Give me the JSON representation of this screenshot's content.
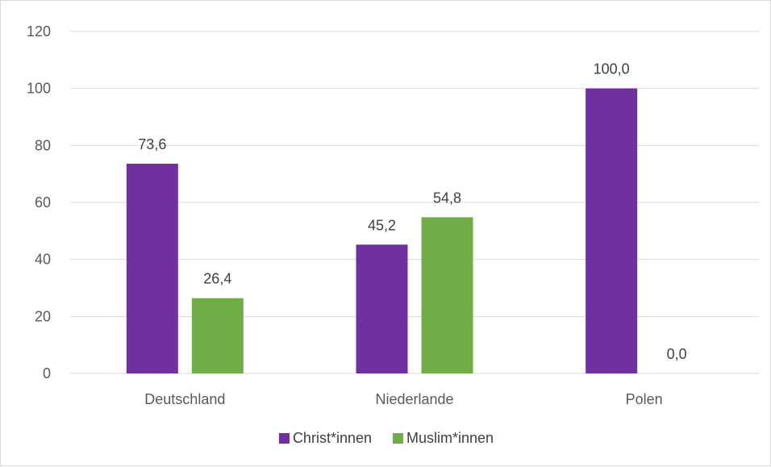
{
  "chart_data": {
    "type": "bar",
    "title": "",
    "xlabel": "",
    "ylabel": "",
    "categories": [
      "Deutschland",
      "Niederlande",
      "Polen"
    ],
    "series": [
      {
        "name": "Christ*innen",
        "color": "#7030a0",
        "values": [
          73.6,
          45.2,
          100.0
        ],
        "labels": [
          "73,6",
          "45,2",
          "100,0"
        ]
      },
      {
        "name": "Muslim*innen",
        "color": "#70ad47",
        "values": [
          26.4,
          54.8,
          0.0
        ],
        "labels": [
          "26,4",
          "54,8",
          "0,0"
        ]
      }
    ],
    "ylim": [
      0,
      120
    ],
    "yticks": [
      0,
      20,
      40,
      60,
      80,
      100,
      120
    ],
    "grid": true,
    "legend": "bottom-center"
  }
}
